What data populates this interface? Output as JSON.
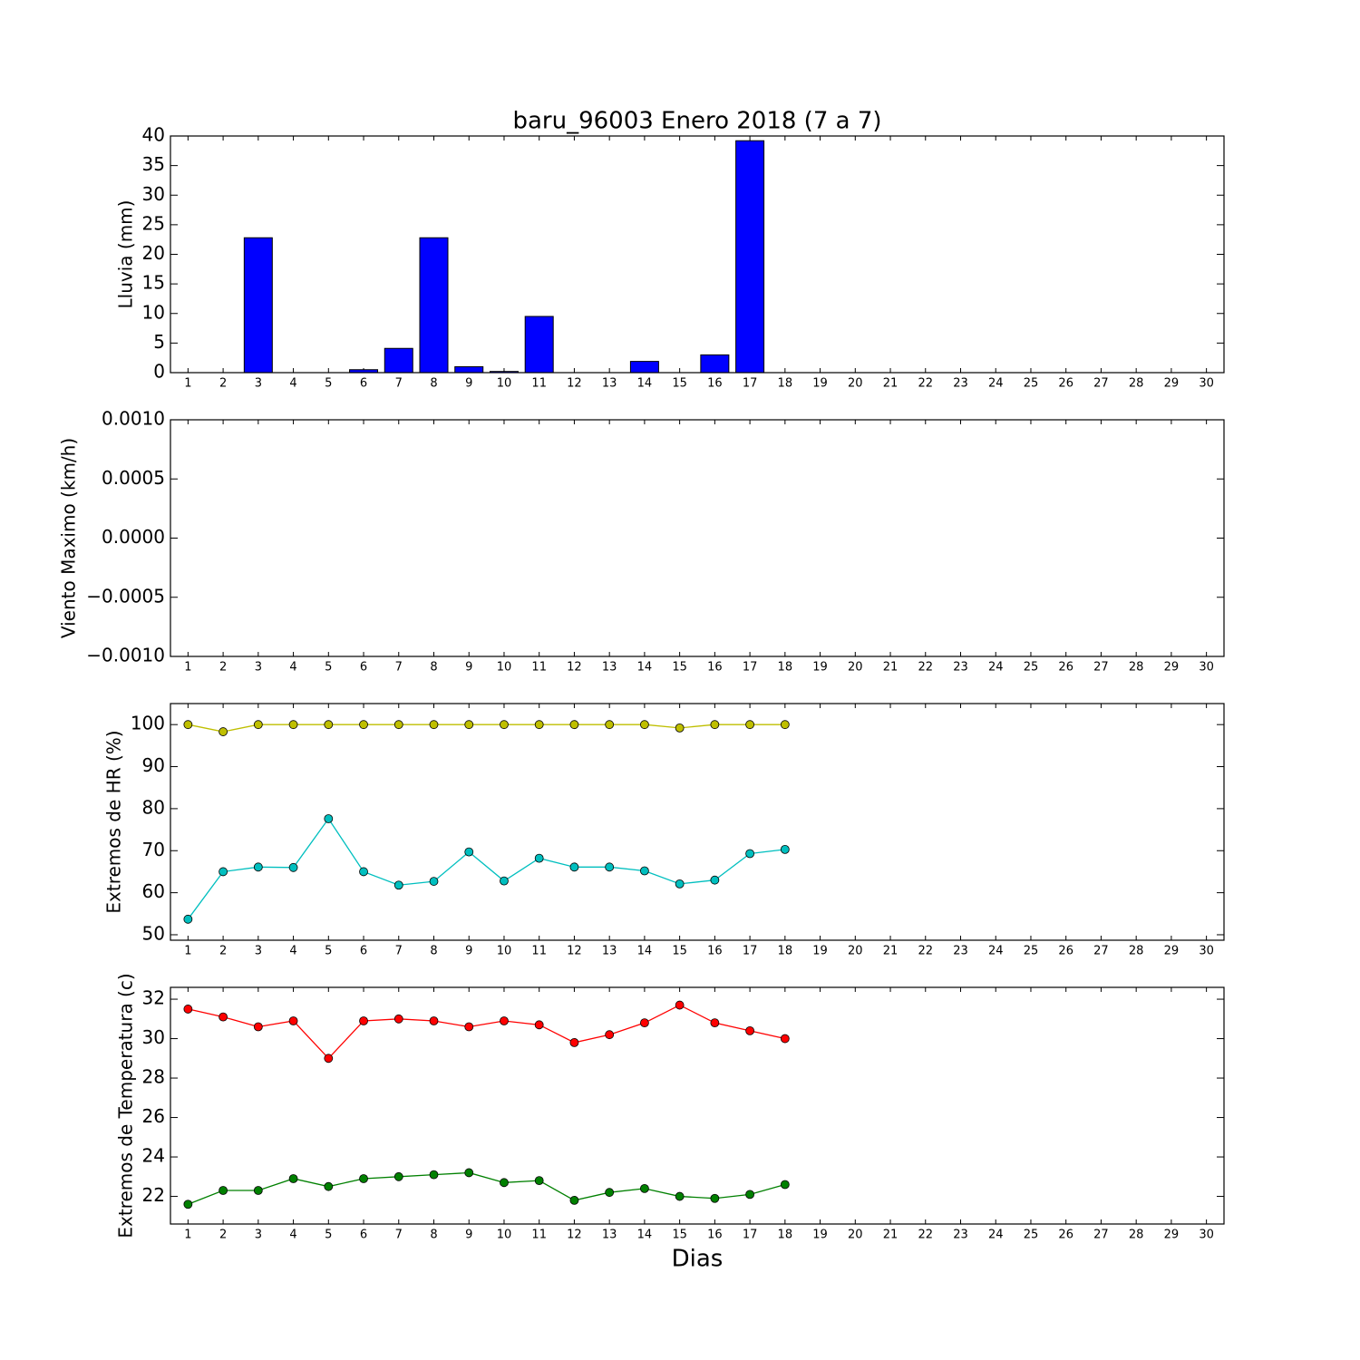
{
  "chart_data": [
    {
      "type": "bar",
      "title": "baru_96003 Enero 2018  (7 a 7)",
      "y_label": "Lluvia (mm)",
      "x": [
        1,
        2,
        3,
        4,
        5,
        6,
        7,
        8,
        9,
        10,
        11,
        12,
        13,
        14,
        15,
        16,
        17
      ],
      "values": [
        0,
        0,
        22.8,
        0,
        0,
        0.5,
        4.1,
        22.8,
        1.0,
        0.2,
        9.5,
        0,
        0,
        1.9,
        0,
        3.0,
        39.2
      ],
      "color": "#0000ff",
      "xlim": [
        0.5,
        30.5
      ],
      "xticks": [
        1,
        2,
        3,
        4,
        5,
        6,
        7,
        8,
        9,
        10,
        11,
        12,
        13,
        14,
        15,
        16,
        17,
        18,
        19,
        20,
        21,
        22,
        23,
        24,
        25,
        26,
        27,
        28,
        29,
        30
      ],
      "ylim": [
        0,
        40
      ],
      "yticks": [
        0,
        5,
        10,
        15,
        20,
        25,
        30,
        35,
        40
      ]
    },
    {
      "type": "line",
      "y_label": "Viento Maximo (km/h)",
      "series": [],
      "xlim": [
        0.5,
        30.5
      ],
      "xticks": [
        1,
        2,
        3,
        4,
        5,
        6,
        7,
        8,
        9,
        10,
        11,
        12,
        13,
        14,
        15,
        16,
        17,
        18,
        19,
        20,
        21,
        22,
        23,
        24,
        25,
        26,
        27,
        28,
        29,
        30
      ],
      "ylim": [
        -0.001,
        0.001
      ],
      "yticks": [
        {
          "value": -0.001,
          "label": "−0.0010"
        },
        {
          "value": -0.0005,
          "label": "−0.0005"
        },
        {
          "value": 0,
          "label": "0.0000"
        },
        {
          "value": 0.0005,
          "label": "0.0005"
        },
        {
          "value": 0.001,
          "label": "0.0010"
        }
      ]
    },
    {
      "type": "line",
      "y_label": "Extremos de HR (%)",
      "x": [
        1,
        2,
        3,
        4,
        5,
        6,
        7,
        8,
        9,
        10,
        11,
        12,
        13,
        14,
        15,
        16,
        17,
        18
      ],
      "series": [
        {
          "color": "#bfbf00",
          "values": [
            100,
            98.3,
            100,
            100,
            100,
            100,
            100,
            100,
            100,
            100,
            100,
            100,
            100,
            100,
            99.2,
            100,
            100,
            100
          ]
        },
        {
          "color": "#00bfbf",
          "values": [
            53.7,
            65.0,
            66.1,
            66.0,
            77.6,
            65.0,
            61.8,
            62.7,
            69.7,
            62.8,
            68.2,
            66.1,
            66.1,
            65.2,
            62.1,
            63.0,
            69.3,
            70.3
          ]
        }
      ],
      "xlim": [
        0.5,
        30.5
      ],
      "xticks": [
        1,
        2,
        3,
        4,
        5,
        6,
        7,
        8,
        9,
        10,
        11,
        12,
        13,
        14,
        15,
        16,
        17,
        18,
        19,
        20,
        21,
        22,
        23,
        24,
        25,
        26,
        27,
        28,
        29,
        30
      ],
      "ylim": [
        48.7,
        105
      ],
      "yticks": [
        50,
        60,
        70,
        80,
        90,
        100
      ]
    },
    {
      "type": "line",
      "y_label": "Extremos de Temperatura (c)",
      "x_label": "Dias",
      "x": [
        1,
        2,
        3,
        4,
        5,
        6,
        7,
        8,
        9,
        10,
        11,
        12,
        13,
        14,
        15,
        16,
        17,
        18
      ],
      "series": [
        {
          "color": "#ff0000",
          "values": [
            31.5,
            31.1,
            30.6,
            30.9,
            29.0,
            30.9,
            31.0,
            30.9,
            30.6,
            30.9,
            30.7,
            29.8,
            30.2,
            30.8,
            31.7,
            30.8,
            30.4,
            30.0
          ]
        },
        {
          "color": "#008000",
          "values": [
            21.6,
            22.3,
            22.3,
            22.9,
            22.5,
            22.9,
            23.0,
            23.1,
            23.2,
            22.7,
            22.8,
            21.8,
            22.2,
            22.4,
            22.0,
            21.9,
            22.1,
            22.6
          ]
        }
      ],
      "xlim": [
        0.5,
        30.5
      ],
      "xticks": [
        1,
        2,
        3,
        4,
        5,
        6,
        7,
        8,
        9,
        10,
        11,
        12,
        13,
        14,
        15,
        16,
        17,
        18,
        19,
        20,
        21,
        22,
        23,
        24,
        25,
        26,
        27,
        28,
        29,
        30
      ],
      "ylim": [
        20.6,
        32.6
      ],
      "yticks": [
        22,
        24,
        26,
        28,
        30,
        32
      ]
    }
  ]
}
